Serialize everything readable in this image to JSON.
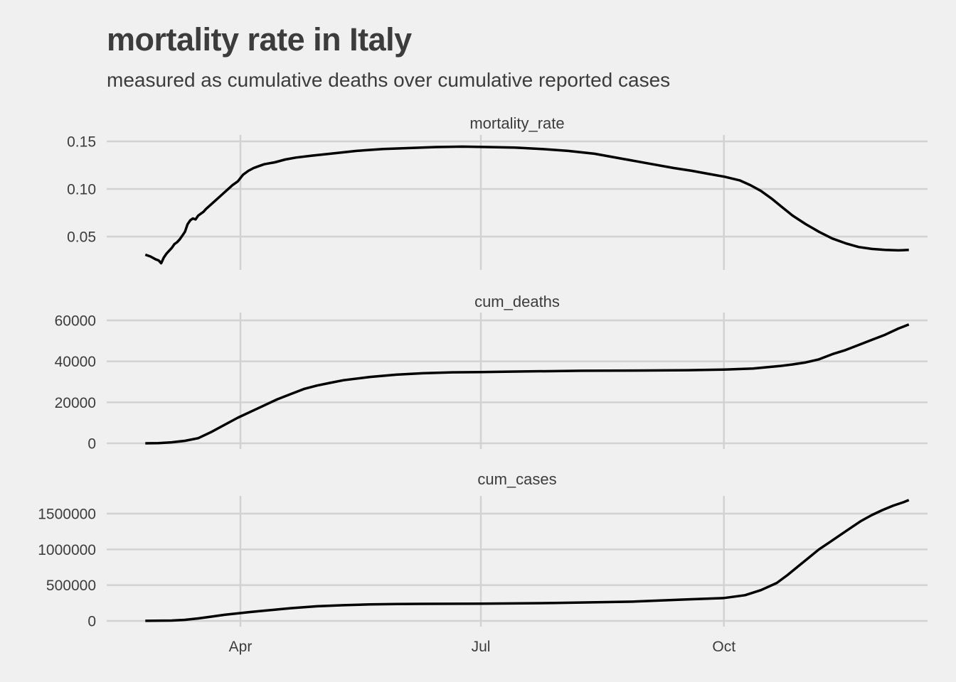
{
  "title": "mortality rate in Italy",
  "subtitle": "measured as cumulative deaths over cumulative reported cases",
  "chart_data": {
    "type": "line",
    "x_unit": "day of year 2020",
    "x_ticks": [
      {
        "label": "Apr",
        "day": 91
      },
      {
        "label": "Jul",
        "day": 182
      },
      {
        "label": "Oct",
        "day": 274
      }
    ],
    "xlim": [
      44,
      355
    ],
    "panels": [
      {
        "name": "mortality_rate",
        "ylim": [
          0.02,
          0.155
        ],
        "y_ticks": [
          {
            "label": "0.05",
            "value": 0.05
          },
          {
            "label": "0.10",
            "value": 0.1
          },
          {
            "label": "0.15",
            "value": 0.15
          }
        ],
        "x": [
          55,
          57,
          59,
          60,
          61,
          62,
          63,
          64,
          65,
          66,
          67,
          68,
          69,
          70,
          71,
          72,
          73,
          74,
          75,
          76,
          77,
          78,
          80,
          82,
          84,
          86,
          88,
          90,
          92,
          94,
          96,
          98,
          100,
          102,
          104,
          108,
          112,
          118,
          125,
          135,
          145,
          155,
          165,
          175,
          185,
          195,
          205,
          215,
          225,
          235,
          245,
          255,
          262,
          268,
          274,
          280,
          284,
          288,
          292,
          296,
          300,
          305,
          310,
          315,
          320,
          325,
          330,
          335,
          340,
          344
        ],
        "values": [
          0.031,
          0.029,
          0.026,
          0.025,
          0.022,
          0.028,
          0.032,
          0.035,
          0.038,
          0.042,
          0.044,
          0.047,
          0.051,
          0.055,
          0.063,
          0.067,
          0.069,
          0.068,
          0.072,
          0.074,
          0.076,
          0.079,
          0.084,
          0.089,
          0.094,
          0.099,
          0.104,
          0.108,
          0.115,
          0.119,
          0.122,
          0.124,
          0.126,
          0.127,
          0.128,
          0.131,
          0.133,
          0.135,
          0.137,
          0.14,
          0.142,
          0.143,
          0.144,
          0.1445,
          0.144,
          0.1435,
          0.142,
          0.14,
          0.137,
          0.132,
          0.127,
          0.122,
          0.119,
          0.116,
          0.113,
          0.109,
          0.104,
          0.098,
          0.09,
          0.081,
          0.072,
          0.063,
          0.055,
          0.048,
          0.043,
          0.039,
          0.037,
          0.036,
          0.0355,
          0.036
        ]
      },
      {
        "name": "cum_deaths",
        "ylim": [
          0,
          62000
        ],
        "y_ticks": [
          {
            "label": "0",
            "value": 0
          },
          {
            "label": "20000",
            "value": 20000
          },
          {
            "label": "40000",
            "value": 40000
          },
          {
            "label": "60000",
            "value": 60000
          }
        ],
        "x": [
          55,
          60,
          65,
          70,
          75,
          80,
          85,
          90,
          95,
          100,
          105,
          110,
          115,
          120,
          125,
          130,
          140,
          150,
          160,
          170,
          182,
          200,
          220,
          240,
          260,
          274,
          285,
          295,
          300,
          305,
          310,
          315,
          320,
          325,
          330,
          335,
          340,
          344
        ],
        "values": [
          10,
          100,
          500,
          1200,
          2500,
          5500,
          9000,
          12500,
          15500,
          18500,
          21500,
          24000,
          26500,
          28200,
          29500,
          30800,
          32400,
          33500,
          34200,
          34600,
          34800,
          35100,
          35400,
          35500,
          35700,
          36000,
          36500,
          37700,
          38500,
          39500,
          41000,
          43500,
          45500,
          48000,
          50500,
          53000,
          56000,
          58000
        ]
      },
      {
        "name": "cum_cases",
        "ylim": [
          -30000,
          1800000
        ],
        "y_ticks": [
          {
            "label": "0",
            "value": 0
          },
          {
            "label": "500000",
            "value": 500000
          },
          {
            "label": "1000000",
            "value": 1000000
          },
          {
            "label": "1500000",
            "value": 1500000
          }
        ],
        "x": [
          55,
          65,
          70,
          75,
          80,
          85,
          90,
          95,
          100,
          105,
          110,
          115,
          120,
          130,
          140,
          150,
          160,
          182,
          210,
          240,
          260,
          274,
          282,
          288,
          294,
          298,
          302,
          306,
          310,
          314,
          318,
          322,
          326,
          330,
          334,
          338,
          342,
          344
        ],
        "values": [
          500,
          5000,
          15000,
          35000,
          60000,
          85000,
          105000,
          125000,
          143000,
          160000,
          178000,
          192000,
          205000,
          220000,
          230000,
          235000,
          238000,
          241000,
          250000,
          270000,
          300000,
          320000,
          360000,
          430000,
          530000,
          640000,
          760000,
          880000,
          1000000,
          1100000,
          1200000,
          1300000,
          1400000,
          1480000,
          1550000,
          1610000,
          1660000,
          1690000
        ]
      }
    ],
    "colors": {
      "line": "#000000",
      "grid": "#d2d2d2",
      "background": "#f0f0f0",
      "text": "#3c3c3c"
    }
  }
}
